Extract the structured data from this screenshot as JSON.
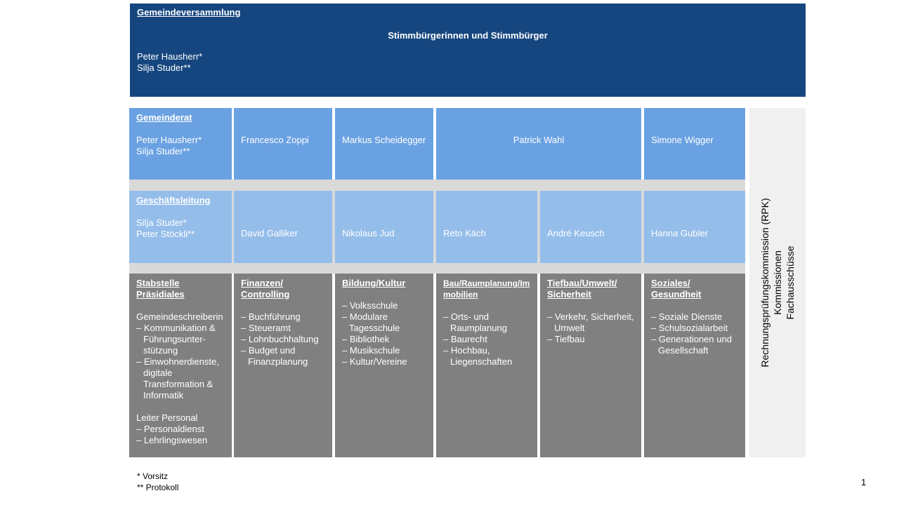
{
  "gemeindeversammlung": {
    "title": "Gemeindeversammlung",
    "subtitle": "Stimmbürgerinnen und Stimmbürger",
    "members": [
      "Peter Hausherr*",
      "Silja Studer**"
    ]
  },
  "gemeinderat": {
    "title": "Gemeinderat",
    "members": [
      "Peter Hausherr*",
      "Silja Studer**"
    ],
    "others": [
      "Francesco Zoppi",
      "Markus Scheidegger",
      "Patrick Wahl",
      "Simone Wigger"
    ]
  },
  "geschaeftsleitung": {
    "title": "Geschäftsleitung",
    "members": [
      "Silja Studer*",
      "Peter Stöckli**"
    ],
    "others": [
      "David Galliker",
      "Nikolaus Jud",
      "Reto Käch",
      "André Keusch",
      "Hanna Gubler"
    ]
  },
  "departments": [
    {
      "title": "Stabstelle Präsidiales",
      "groups": [
        {
          "lead": "Gemeindeschreiberin",
          "items": [
            "Kommunikation & Führungsunter-stützung",
            "Einwohnerdienste, digitale Transformation & Informatik"
          ]
        },
        {
          "lead": "Leiter Personal",
          "items": [
            "Personaldienst",
            "Lehrlingswesen"
          ]
        }
      ]
    },
    {
      "title": "Finanzen/ Controlling",
      "groups": [
        {
          "lead": "",
          "items": [
            "Buchführung",
            "Steueramt",
            "Lohnbuchhaltung",
            "Budget und Finanzplanung"
          ]
        }
      ]
    },
    {
      "title": "Bildung/Kultur",
      "groups": [
        {
          "lead": "",
          "items": [
            "Volksschule",
            "Modulare Tagesschule",
            "Bibliothek",
            "Musikschule",
            "Kultur/Vereine"
          ]
        }
      ]
    },
    {
      "title": "Bau/Raumplanung/Immobilien",
      "groups": [
        {
          "lead": "",
          "items": [
            "Orts- und Raumplanung",
            "Baurecht",
            "Hochbau, Liegenschaften"
          ]
        }
      ]
    },
    {
      "title": "Tiefbau/Umwelt/ Sicherheit",
      "groups": [
        {
          "lead": "",
          "items": [
            "Verkehr, Sicherheit,  Umwelt",
            "Tiefbau"
          ]
        }
      ]
    },
    {
      "title": "Soziales/ Gesundheit",
      "groups": [
        {
          "lead": "",
          "items": [
            "Soziale Dienste",
            "Schulsozialarbeit",
            "Generationen und Gesellschaft"
          ]
        }
      ]
    }
  ],
  "side": [
    "Rechnungsprüfungskommission (RPK)",
    "Kommissionen",
    "Fachausschüsse"
  ],
  "footnotes": [
    "* Vorsitz",
    "** Protokoll"
  ],
  "page_number": "1",
  "colors": {
    "banner": "#16467f",
    "gemeinderat": "#6aa1e2",
    "geschaeftsleitung": "#94bdea",
    "departments": "#808080"
  }
}
